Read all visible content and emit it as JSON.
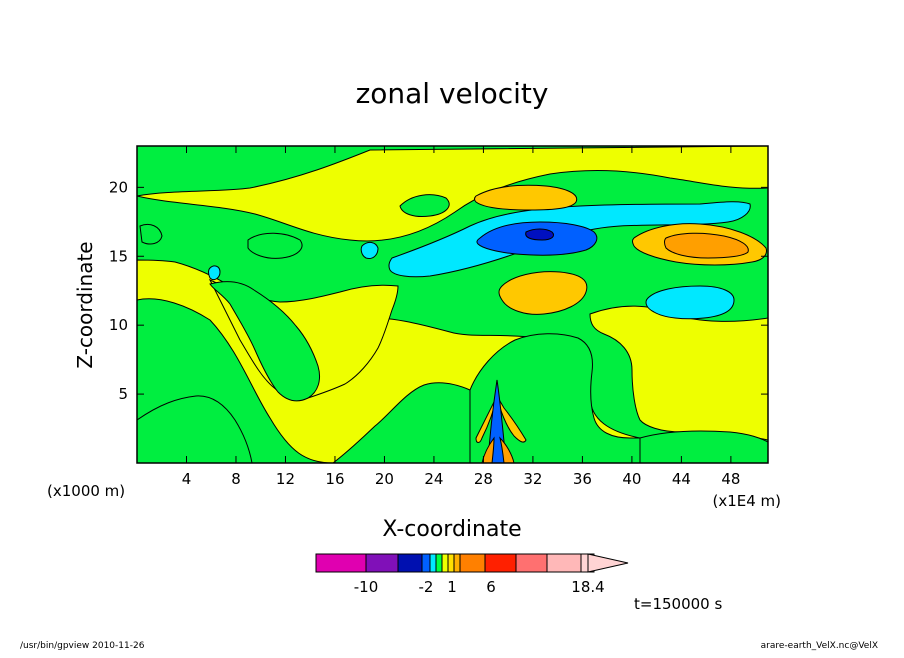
{
  "chart_data": {
    "type": "heatmap",
    "title": "zonal velocity",
    "xlabel": "X-coordinate",
    "ylabel": "Z-coordinate",
    "x_scale_note": "(x1E4 m)",
    "y_scale_note": "(x1000 m)",
    "xlim": [
      0,
      51
    ],
    "ylim": [
      0,
      23
    ],
    "x_ticks": [
      4,
      8,
      12,
      16,
      20,
      24,
      28,
      32,
      36,
      40,
      44,
      48
    ],
    "x_tick_labels": [
      "4",
      "8",
      "12",
      "16",
      "20",
      "24",
      "28",
      "32",
      "36",
      "40",
      "44",
      "48"
    ],
    "y_ticks": [
      5,
      10,
      15,
      20
    ],
    "y_tick_labels": [
      "5",
      "10",
      "15",
      "20"
    ],
    "time_label": "t=150000 s",
    "colorbar": {
      "colors": [
        "#e000b0",
        "#8010b8",
        "#0010b0",
        "#0060ff",
        "#00e8ff",
        "#00ff40",
        "#f0ff00",
        "#ffe000",
        "#ffb000",
        "#ff8000",
        "#ff2000",
        "#ff7070",
        "#ffb8b8",
        "#ffd4d4"
      ],
      "tick_labels": [
        "-10",
        "-2",
        "1",
        "6",
        "18.4"
      ],
      "tick_positions": [
        -10,
        -2,
        1,
        6,
        18.4
      ]
    },
    "field_regions": [
      {
        "label": "background",
        "color": "#00ee40"
      },
      {
        "label": "positive",
        "color": "#eeff00"
      },
      {
        "label": "moderate-positive",
        "color": "#ffc800"
      },
      {
        "label": "strong-positive",
        "color": "#ff9f00"
      },
      {
        "label": "weak-negative",
        "color": "#00e8ff"
      },
      {
        "label": "moderate-negative",
        "color": "#0060ff"
      },
      {
        "label": "strong-negative",
        "color": "#0010c0"
      }
    ]
  },
  "footer": {
    "left": "/usr/bin/gpview   2010-11-26",
    "right": "arare-earth_VelX.nc@VelX"
  }
}
